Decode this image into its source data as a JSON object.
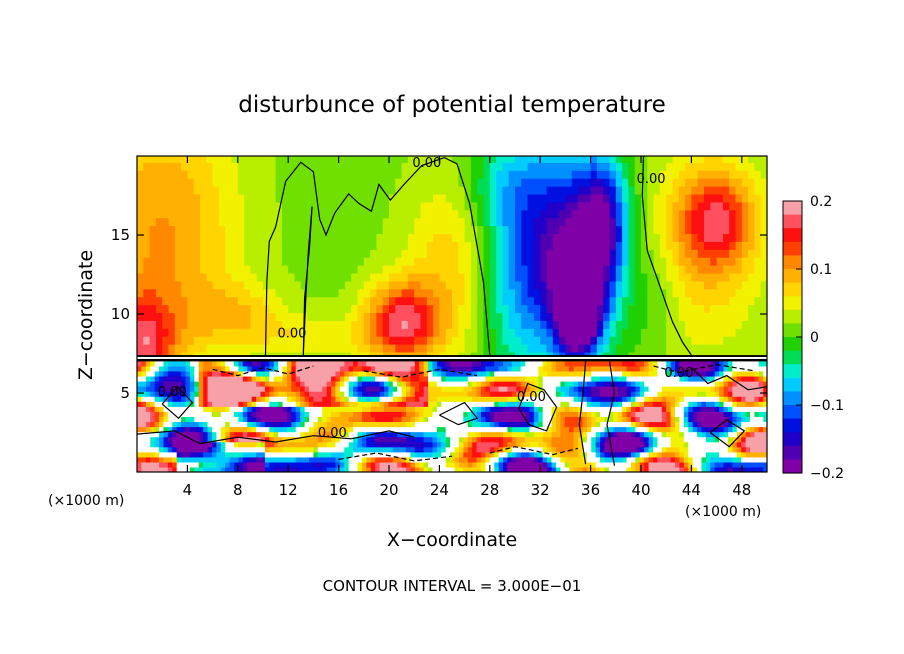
{
  "chart_data": {
    "type": "heatmap",
    "title": "disturbunce of potential temperature",
    "xlabel": "X−coordinate",
    "ylabel": "Z−coordinate",
    "x_unit": "(×1000 m)",
    "z_unit": "(×1000 m)",
    "footer": "CONTOUR INTERVAL = 3.000E−01",
    "xlim": [
      0,
      50
    ],
    "zlim": [
      0,
      20
    ],
    "x_ticks": [
      "4",
      "8",
      "12",
      "16",
      "20",
      "24",
      "28",
      "32",
      "36",
      "40",
      "44",
      "48"
    ],
    "x_tick_values": [
      4,
      8,
      12,
      16,
      20,
      24,
      28,
      32,
      36,
      40,
      44,
      48
    ],
    "z_ticks": [
      "5",
      "10",
      "15"
    ],
    "z_tick_values": [
      5,
      10,
      15
    ],
    "colorbar": {
      "range": [
        -0.2,
        0.2
      ],
      "tick_labels": [
        "0.2",
        "0.1",
        "0",
        "−0.1",
        "−0.2"
      ],
      "tick_values": [
        0.2,
        0.1,
        0,
        -0.1,
        -0.2
      ],
      "colors": [
        "#f8a0a8",
        "#ff5060",
        "#ff1010",
        "#ff4000",
        "#ff8800",
        "#ffb000",
        "#ffd400",
        "#f2f200",
        "#b8ee00",
        "#70e000",
        "#20d000",
        "#00dd55",
        "#00eecc",
        "#00ccff",
        "#0090ff",
        "#0050ff",
        "#0010e0",
        "#2000c8",
        "#5000b0",
        "#8000a8"
      ]
    },
    "contour_labels": [
      {
        "text": "0.00",
        "x": 23.0,
        "z": 19.3
      },
      {
        "text": "0.00",
        "x": 40.8,
        "z": 18.3
      },
      {
        "text": "0.00",
        "x": 12.3,
        "z": 8.5
      },
      {
        "text": "0.00",
        "x": 2.8,
        "z": 4.8
      },
      {
        "text": "0.00",
        "x": 15.5,
        "z": 2.2
      },
      {
        "text": "0.00",
        "x": 31.3,
        "z": 4.5
      },
      {
        "text": "0.00",
        "x": 43.0,
        "z": 6.0
      }
    ],
    "grid": false,
    "legend_position": "right"
  }
}
